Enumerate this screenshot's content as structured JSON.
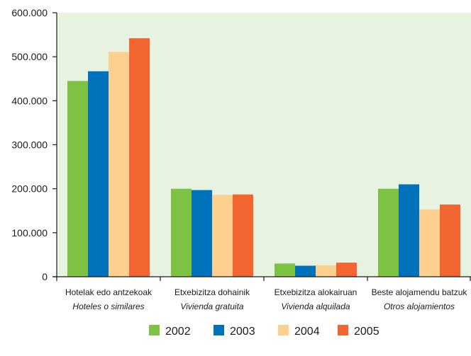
{
  "chart_data": {
    "type": "bar",
    "categories": [
      {
        "line1": "Hotelak edo antzekoak",
        "line2": "Hoteles o similares"
      },
      {
        "line1": "Etxebizitza dohainik",
        "line2": "Vivienda gratuita"
      },
      {
        "line1": "Etxebizitza alokairuan",
        "line2": "Vivienda alquilada"
      },
      {
        "line1": "Beste alojamendu batzuk",
        "line2": "Otros alojamientos"
      }
    ],
    "series": [
      {
        "name": "2002",
        "color": "#7dc242",
        "values": [
          445000,
          200000,
          30000,
          200000
        ]
      },
      {
        "name": "2003",
        "color": "#0072bc",
        "values": [
          467000,
          197000,
          25000,
          210000
        ]
      },
      {
        "name": "2004",
        "color": "#fdd08f",
        "values": [
          511000,
          186000,
          26000,
          153000
        ]
      },
      {
        "name": "2005",
        "color": "#f26531",
        "values": [
          542000,
          187000,
          32000,
          164000
        ]
      }
    ],
    "yticks": [
      {
        "value": 0,
        "label": "0"
      },
      {
        "value": 100000,
        "label": "100.000"
      },
      {
        "value": 200000,
        "label": "200.000"
      },
      {
        "value": 300000,
        "label": "300.000"
      },
      {
        "value": 400000,
        "label": "400.000"
      },
      {
        "value": 500000,
        "label": "500.000"
      },
      {
        "value": 600000,
        "label": "600.000"
      }
    ],
    "ylim": [
      0,
      600000
    ],
    "grid": false,
    "legend_position": "bottom",
    "plot_background": "#e7f2e1",
    "title": "",
    "xlabel": "",
    "ylabel": ""
  }
}
